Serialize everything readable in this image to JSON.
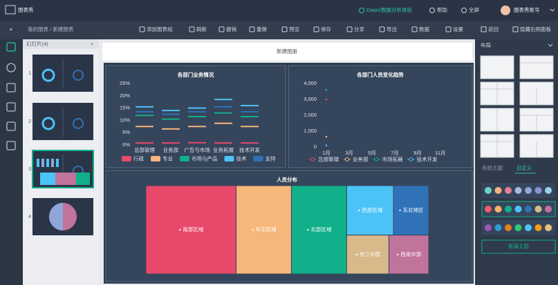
{
  "header": {
    "logo": "图表秀",
    "links": [
      "DataV数据分析体验",
      "帮助",
      "全屏"
    ],
    "account": "图表秀账号"
  },
  "toolbar": {
    "breadcrumb": "我的图表 / 新建图表",
    "actions": [
      "添加图表组",
      "刷新",
      "撤销",
      "重做",
      "预览",
      "保存",
      "分享",
      "导出",
      "数据",
      "设置"
    ],
    "right_actions": [
      "返回",
      "隐藏右侧面板"
    ]
  },
  "slides": {
    "title": "幻灯片(4)",
    "add": "+",
    "pages": [
      "1",
      "2",
      "3",
      "4"
    ]
  },
  "canvas": {
    "title": "新建图册"
  },
  "chart_data": [
    {
      "type": "dash",
      "title": "各部门业务情况",
      "categories": [
        "总部管理",
        "业务部",
        "广告与市场",
        "业务拓展",
        "技术开发"
      ],
      "series": [
        {
          "name": "行政",
          "color": "#e8496a",
          "values": [
            0.8,
            0.8,
            0.9,
            0.8,
            0.8
          ]
        },
        {
          "name": "专业",
          "color": "#f7b77a",
          "values": [
            7.5,
            6.5,
            7.5,
            8.8,
            7.5
          ]
        },
        {
          "name": "市场与产品",
          "color": "#11b08a",
          "values": [
            12,
            10.5,
            11.5,
            13,
            11.5
          ]
        },
        {
          "name": "技术",
          "color": "#4cc3f7",
          "values": [
            15.5,
            14,
            15,
            18.5,
            16
          ]
        },
        {
          "name": "支持",
          "color": "#2f72b8",
          "values": [
            13.5,
            12.5,
            13.5,
            15.5,
            13.5
          ]
        }
      ],
      "ylim": [
        0,
        25
      ],
      "yticks": [
        {
          "value": 0,
          "label": "0%"
        },
        {
          "value": 5,
          "label": "5%"
        },
        {
          "value": 10,
          "label": "10%"
        },
        {
          "value": 15,
          "label": "15%"
        },
        {
          "value": 20,
          "label": "20%"
        },
        {
          "value": 25,
          "label": "25%"
        }
      ],
      "grid": false
    },
    {
      "type": "line",
      "title": "各部门人员变化趋势",
      "categories": [
        "1月",
        "3月",
        "5月",
        "7月",
        "9月",
        "11月"
      ],
      "series": [
        {
          "name": "总部管理",
          "color": "#e8496a",
          "values": [
            3000,
            null,
            null,
            null,
            null,
            null
          ]
        },
        {
          "name": "业务部",
          "color": "#f7b77a",
          "values": [
            650,
            null,
            null,
            null,
            null,
            null
          ]
        },
        {
          "name": "市场拓展",
          "color": "#11b08a",
          "values": [
            3600,
            null,
            null,
            null,
            null,
            null
          ]
        },
        {
          "name": "技术开发",
          "color": "#4cc3f7",
          "values": [
            100,
            null,
            null,
            null,
            null,
            null
          ]
        }
      ],
      "ylim": [
        0,
        4000
      ],
      "yticks": [
        0,
        {
          "value": 1000,
          "label": "1,000"
        },
        {
          "value": 2000,
          "label": "2,000"
        },
        {
          "value": 3000,
          "label": "3,000"
        },
        {
          "value": 4000,
          "label": "4,000"
        }
      ],
      "grid": false
    },
    {
      "type": "treemap",
      "title": "人员分布",
      "categories": [
        "南部区域",
        "华东区域",
        "北部区域",
        "西部区域",
        "东北地区",
        "长江中部",
        "西南中部"
      ],
      "values": [
        165,
        101,
        101,
        48,
        36,
        34,
        32
      ],
      "colors": [
        "#e8496a",
        "#f7b77a",
        "#11b08a",
        "#4cc3f7",
        "#2f72b8",
        "#d7b98a",
        "#c0739b"
      ]
    }
  ],
  "right_panel": {
    "title": "布局",
    "tabs": [
      "系统主题",
      "自定义"
    ],
    "button": "新建主题"
  }
}
